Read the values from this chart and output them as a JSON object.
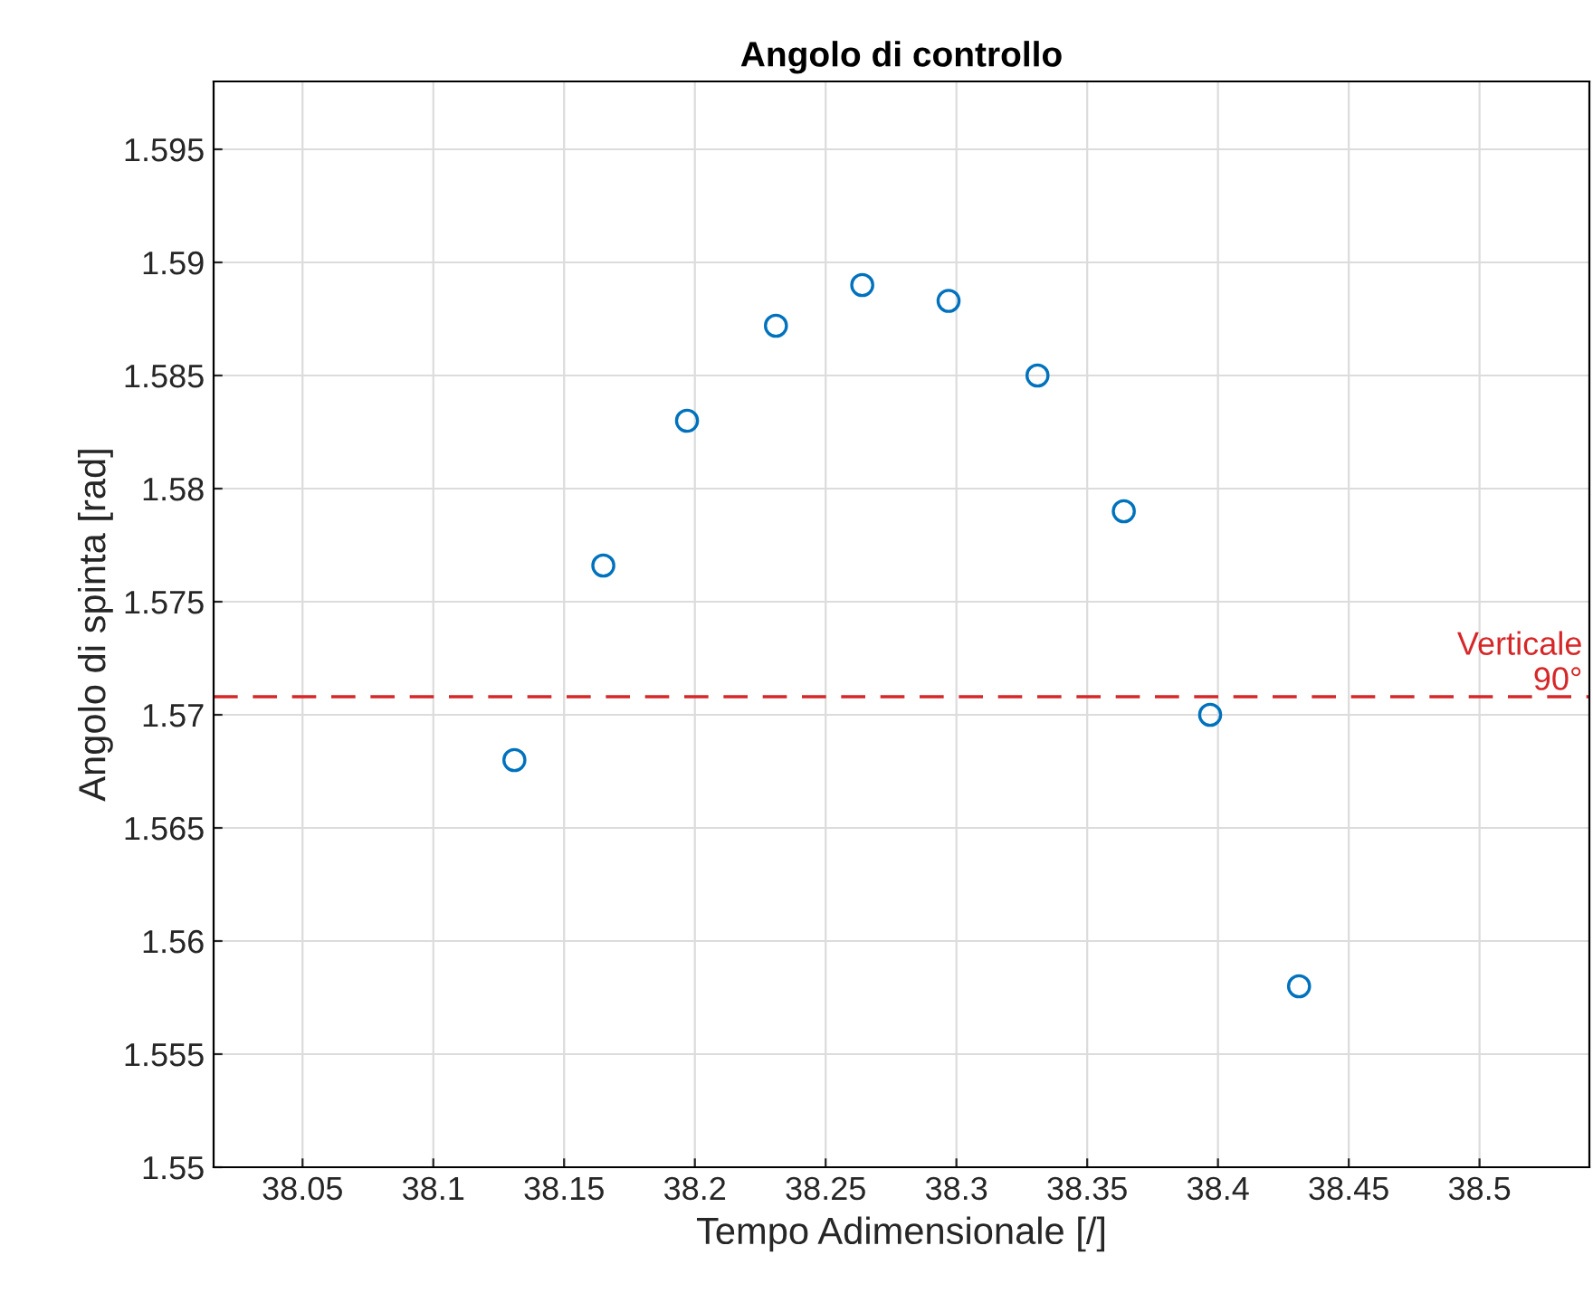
{
  "chart_data": {
    "type": "scatter",
    "title": "Angolo di controllo",
    "xlabel": "Tempo Adimensionale [/]",
    "ylabel": "Angolo di spinta [rad]",
    "x": [
      38.131,
      38.165,
      38.197,
      38.231,
      38.264,
      38.297,
      38.331,
      38.364,
      38.397,
      38.431
    ],
    "series": [
      {
        "color": "#0072bd",
        "values": [
          1.568,
          1.5766,
          1.583,
          1.5872,
          1.589,
          1.5883,
          1.585,
          1.579,
          1.57,
          1.558
        ]
      }
    ],
    "marker": "circle",
    "xlim": [
      38.016,
      38.542
    ],
    "xticks": [
      38.05,
      38.1,
      38.15,
      38.2,
      38.25,
      38.3,
      38.35,
      38.4,
      38.45,
      38.5
    ],
    "ylim": [
      1.55,
      1.598
    ],
    "yticks": [
      1.55,
      1.555,
      1.56,
      1.565,
      1.57,
      1.575,
      1.58,
      1.585,
      1.59,
      1.595
    ],
    "ref_lines": [
      {
        "axis": "y",
        "value": 1.5708,
        "label": "Verticale\n90°",
        "color": "#d62728",
        "line_style": "dashed"
      }
    ],
    "grid": true
  }
}
